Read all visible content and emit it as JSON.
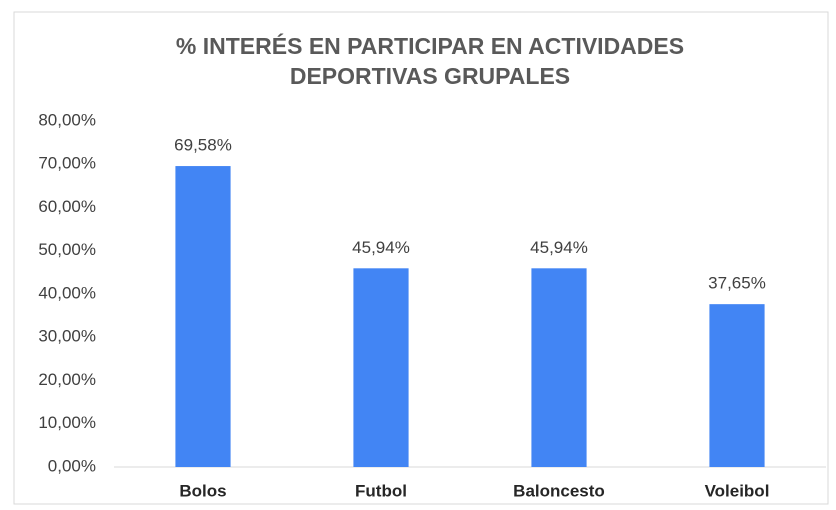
{
  "chart_data": {
    "type": "bar",
    "title": [
      "% INTERÉS EN PARTICIPAR EN ACTIVIDADES",
      "DEPORTIVAS GRUPALES"
    ],
    "categories": [
      "Bolos",
      "Futbol",
      "Baloncesto",
      "Voleibol"
    ],
    "values": [
      69.58,
      45.94,
      45.94,
      37.65
    ],
    "value_labels": [
      "69,58%",
      "45,94%",
      "45,94%",
      "37,65%"
    ],
    "color": "#4285f4",
    "ylim": [
      0,
      80
    ],
    "yticks": [
      {
        "value": 0,
        "label": "0,00%"
      },
      {
        "value": 10,
        "label": "10,00%"
      },
      {
        "value": 20,
        "label": "20,00%"
      },
      {
        "value": 30,
        "label": "30,00%"
      },
      {
        "value": 40,
        "label": "40,00%"
      },
      {
        "value": 50,
        "label": "50,00%"
      },
      {
        "value": 60,
        "label": "60,00%"
      },
      {
        "value": 70,
        "label": "70,00%"
      },
      {
        "value": 80,
        "label": "80,00%"
      }
    ],
    "grid": false
  }
}
